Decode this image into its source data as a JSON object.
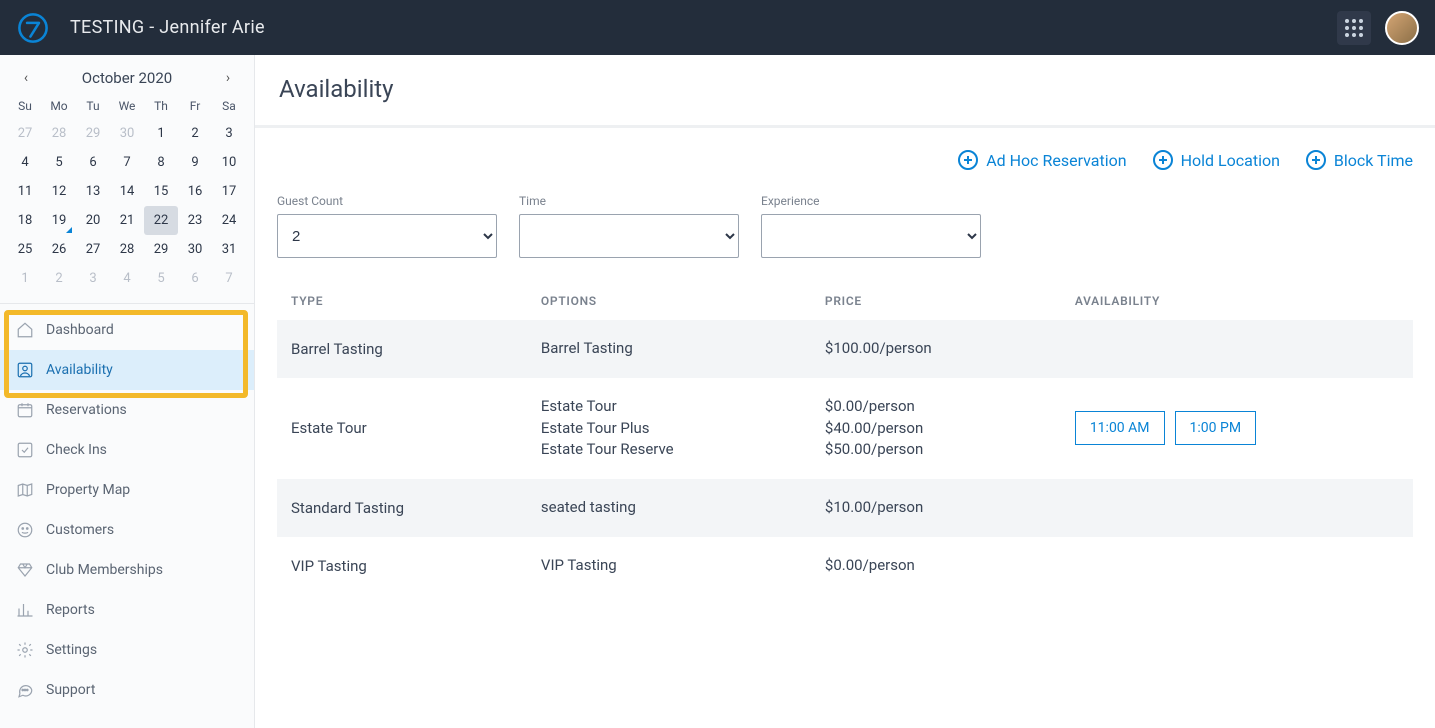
{
  "header": {
    "title": "TESTING - Jennifer Arie"
  },
  "calendar": {
    "month_label": "October 2020",
    "dow": [
      "Su",
      "Mo",
      "Tu",
      "We",
      "Th",
      "Fr",
      "Sa"
    ],
    "weeks": [
      [
        {
          "d": "27",
          "dim": true
        },
        {
          "d": "28",
          "dim": true
        },
        {
          "d": "29",
          "dim": true
        },
        {
          "d": "30",
          "dim": true
        },
        {
          "d": "1"
        },
        {
          "d": "2"
        },
        {
          "d": "3"
        }
      ],
      [
        {
          "d": "4"
        },
        {
          "d": "5"
        },
        {
          "d": "6"
        },
        {
          "d": "7"
        },
        {
          "d": "8"
        },
        {
          "d": "9"
        },
        {
          "d": "10"
        }
      ],
      [
        {
          "d": "11"
        },
        {
          "d": "12"
        },
        {
          "d": "13"
        },
        {
          "d": "14"
        },
        {
          "d": "15"
        },
        {
          "d": "16"
        },
        {
          "d": "17"
        }
      ],
      [
        {
          "d": "18"
        },
        {
          "d": "19",
          "today": true
        },
        {
          "d": "20"
        },
        {
          "d": "21"
        },
        {
          "d": "22",
          "selected": true
        },
        {
          "d": "23"
        },
        {
          "d": "24"
        }
      ],
      [
        {
          "d": "25"
        },
        {
          "d": "26"
        },
        {
          "d": "27"
        },
        {
          "d": "28"
        },
        {
          "d": "29"
        },
        {
          "d": "30"
        },
        {
          "d": "31"
        }
      ],
      [
        {
          "d": "1",
          "dim": true
        },
        {
          "d": "2",
          "dim": true
        },
        {
          "d": "3",
          "dim": true
        },
        {
          "d": "4",
          "dim": true
        },
        {
          "d": "5",
          "dim": true
        },
        {
          "d": "6",
          "dim": true
        },
        {
          "d": "7",
          "dim": true
        }
      ]
    ]
  },
  "nav": {
    "items": [
      {
        "key": "dashboard",
        "label": "Dashboard",
        "icon": "home"
      },
      {
        "key": "availability",
        "label": "Availability",
        "icon": "user-badge",
        "active": true
      },
      {
        "key": "reservations",
        "label": "Reservations",
        "icon": "calendar"
      },
      {
        "key": "checkins",
        "label": "Check Ins",
        "icon": "check-square"
      },
      {
        "key": "property-map",
        "label": "Property Map",
        "icon": "map"
      },
      {
        "key": "customers",
        "label": "Customers",
        "icon": "face"
      },
      {
        "key": "club-memberships",
        "label": "Club Memberships",
        "icon": "diamond"
      },
      {
        "key": "reports",
        "label": "Reports",
        "icon": "bar-chart"
      },
      {
        "key": "settings",
        "label": "Settings",
        "icon": "gear"
      },
      {
        "key": "support",
        "label": "Support",
        "icon": "chat"
      }
    ]
  },
  "page": {
    "title": "Availability",
    "actions": {
      "adhoc": "Ad Hoc Reservation",
      "hold": "Hold Location",
      "block": "Block Time"
    },
    "filters": {
      "guest_count": {
        "label": "Guest Count",
        "value": "2"
      },
      "time": {
        "label": "Time",
        "value": ""
      },
      "experience": {
        "label": "Experience",
        "value": ""
      }
    },
    "table": {
      "headers": {
        "type": "TYPE",
        "options": "OPTIONS",
        "price": "PRICE",
        "availability": "AVAILABILITY"
      },
      "rows": [
        {
          "type": "Barrel Tasting",
          "options": [
            "Barrel Tasting"
          ],
          "prices": [
            "$100.00/person"
          ],
          "times": []
        },
        {
          "type": "Estate Tour",
          "options": [
            "Estate Tour",
            "Estate Tour Plus",
            "Estate Tour Reserve"
          ],
          "prices": [
            "$0.00/person",
            "$40.00/person",
            "$50.00/person"
          ],
          "times": [
            "11:00 AM",
            "1:00 PM"
          ]
        },
        {
          "type": "Standard Tasting",
          "options": [
            "seated tasting"
          ],
          "prices": [
            "$10.00/person"
          ],
          "times": []
        },
        {
          "type": "VIP Tasting",
          "options": [
            "VIP Tasting"
          ],
          "prices": [
            "$0.00/person"
          ],
          "times": []
        }
      ]
    }
  },
  "colors": {
    "accent": "#0a84d6",
    "highlight": "#f3b92a",
    "header_bg": "#232d3b"
  }
}
